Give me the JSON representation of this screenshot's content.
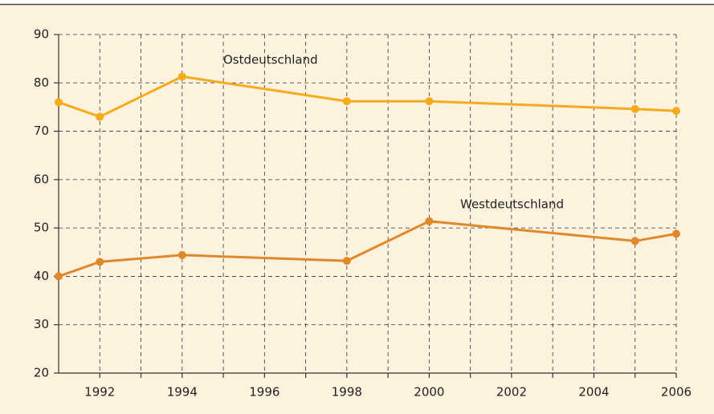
{
  "chart_data": {
    "type": "line",
    "x": [
      1991,
      1992,
      1994,
      1998,
      2000,
      2005,
      2006
    ],
    "series": [
      {
        "name": "Ostdeutschland",
        "color": "#f6ab1c",
        "values": [
          76,
          73,
          81.3,
          76.2,
          76.2,
          74.6,
          74.2
        ]
      },
      {
        "name": "Westdeutschland",
        "color": "#e0882a",
        "values": [
          40,
          43,
          44.4,
          43.2,
          51.4,
          47.3,
          48.8
        ]
      }
    ],
    "xlim": [
      1991,
      2006
    ],
    "xticks": [
      1992,
      1994,
      1996,
      1998,
      2000,
      2002,
      2004,
      2006
    ],
    "xminorticks": [
      1993,
      1995,
      1997,
      1999,
      2001,
      2003,
      2005
    ],
    "ylim": [
      20,
      90
    ],
    "yticks": [
      20,
      30,
      40,
      50,
      60,
      70,
      80,
      90
    ],
    "grid": true
  }
}
